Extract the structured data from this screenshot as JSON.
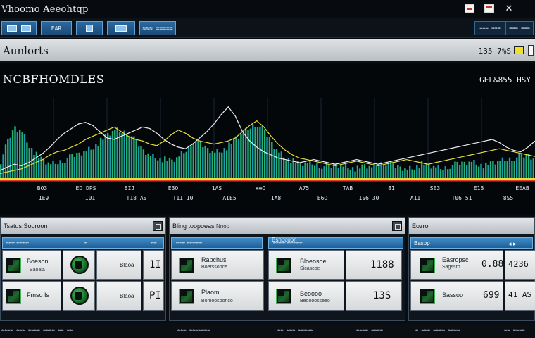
{
  "window": {
    "title": "Vhoomo Aeeohtqp",
    "controls": [
      "minimize-icon",
      "maximize-icon",
      "close-icon"
    ]
  },
  "toolbar": {
    "buttons": [
      {
        "icon": "window-icon",
        "label": ""
      },
      {
        "icon": "",
        "label": "EAR"
      },
      {
        "icon": "download-icon",
        "label": ""
      },
      {
        "icon": "list-icon",
        "label": ""
      },
      {
        "icon": "",
        "label": "≈≈≈ ====="
      }
    ],
    "right_buttons": [
      "=== ≈≈≈",
      "≈≈≈ ≈≈≈"
    ]
  },
  "section": {
    "title": "Aunlorts",
    "value": "135 7%S",
    "accent": "#f2e12a"
  },
  "chart_panel": {
    "title": "NCBFHOMDLES",
    "readout": "GEL&855 HSY"
  },
  "chart_data": {
    "type": "area",
    "title": "NCBFHOMDLES",
    "xlabel": "",
    "ylabel": "",
    "ylim": [
      0,
      100
    ],
    "grid": true,
    "x": [
      0,
      1,
      2,
      3,
      4,
      5,
      6,
      7,
      8,
      9,
      10,
      11,
      12,
      13,
      14,
      15,
      16,
      17,
      18,
      19,
      20,
      21,
      22,
      23,
      24,
      25,
      26,
      27,
      28,
      29,
      30,
      31,
      32,
      33,
      34,
      35,
      36,
      37,
      38,
      39,
      40,
      41,
      42,
      43,
      44,
      45,
      46,
      47,
      48,
      49,
      50,
      51,
      52,
      53,
      54,
      55,
      56,
      57,
      58,
      59,
      60,
      61,
      62,
      63,
      64,
      65,
      66,
      67,
      68,
      69,
      70,
      71,
      72,
      73,
      74,
      75
    ],
    "series": [
      {
        "values": [
          22,
          48,
          66,
          60,
          42,
          30,
          22,
          18,
          20,
          24,
          28,
          32,
          36,
          40,
          48,
          56,
          62,
          60,
          58,
          46,
          36,
          30,
          26,
          24,
          22,
          28,
          36,
          48,
          44,
          38,
          34,
          36,
          42,
          52,
          58,
          66,
          70,
          60,
          46,
          34,
          26,
          22,
          18,
          20,
          18,
          16,
          14,
          18,
          16,
          14,
          12,
          16,
          14,
          18,
          20,
          16,
          14,
          12,
          14,
          18,
          16,
          14,
          12,
          16,
          18,
          20,
          22,
          18,
          16,
          20,
          22,
          24,
          26,
          28,
          30,
          24
        ]
      },
      {
        "values": [
          10,
          14,
          18,
          16,
          20,
          26,
          32,
          40,
          50,
          58,
          64,
          70,
          72,
          68,
          60,
          52,
          50,
          54,
          58,
          62,
          66,
          64,
          58,
          50,
          44,
          40,
          38,
          44,
          52,
          60,
          70,
          82,
          92,
          80,
          60,
          48,
          40,
          34,
          30,
          26,
          24,
          22,
          20,
          22,
          24,
          22,
          20,
          18,
          20,
          22,
          24,
          22,
          20,
          18,
          20,
          22,
          24,
          26,
          28,
          30,
          32,
          34,
          36,
          38,
          40,
          42,
          44,
          46,
          48,
          50,
          46,
          40,
          36,
          34,
          40,
          48
        ]
      },
      {
        "values": [
          6,
          8,
          10,
          12,
          16,
          20,
          24,
          30,
          34,
          36,
          40,
          44,
          50,
          54,
          58,
          62,
          66,
          60,
          54,
          50,
          48,
          44,
          42,
          48,
          56,
          62,
          58,
          52,
          48,
          46,
          44,
          46,
          48,
          52,
          60,
          68,
          74,
          66,
          54,
          44,
          36,
          30,
          26,
          24,
          22,
          20,
          18,
          16,
          18,
          20,
          22,
          20,
          18,
          16,
          18,
          20,
          22,
          24,
          22,
          20,
          18,
          20,
          22,
          24,
          26,
          28,
          30,
          32,
          34,
          36,
          38,
          36,
          34,
          32,
          30,
          28
        ]
      }
    ],
    "colors": [
      "#1fb6d6",
      "#e8e03a",
      "#e03a2a"
    ]
  },
  "ticks": {
    "row1": [
      "BO3",
      "ED DPS",
      "BIJ",
      "E3O",
      "1AS",
      "≡≡O",
      "A75",
      "TAB",
      "81",
      "SE3",
      "E1B",
      "EEAB"
    ],
    "row2": [
      "1E9",
      "101",
      "T18 AS",
      "T11 10",
      "AIE5",
      "1A8",
      "E6O",
      "1S6 30",
      "A11",
      "T06 51",
      "8S5"
    ]
  },
  "panels": [
    {
      "title": "Tsatus Sooroon",
      "sub": "",
      "subhead": [
        "≈≈≈ ≈≈≈≈",
        "≈",
        "≈≈"
      ],
      "rows": [
        {
          "title": "Boeson",
          "sub": "Saoala",
          "label": "Blaoa",
          "value": "1I"
        },
        {
          "title": "Fmso Is",
          "sub": "",
          "label": "Blaoa",
          "value": "PI"
        }
      ]
    },
    {
      "title": "Bling toopoeas",
      "sub": "Nnoo",
      "subhead": [
        "≈≈≈ ≈≈≈≈≈"
      ],
      "rows": [
        {
          "title": "Rapchus",
          "sub": "Boerssooce",
          "value": ""
        },
        {
          "title": "Plaom",
          "sub": "Bomoosoonco",
          "value": ""
        }
      ]
    },
    {
      "title": "Bsnpcoon",
      "sub": "",
      "subhead": [
        "≈≈≈≈ ≈≈≈≈≈"
      ],
      "rows": [
        {
          "title": "Bloeosoe",
          "sub": "Sicascoe",
          "value": "1188"
        },
        {
          "title": "Beoooo",
          "sub": "Beoooosseeo",
          "value": "13S"
        }
      ]
    },
    {
      "title": "Eozro",
      "sub": "",
      "subhead": [
        "Basop"
      ],
      "rows": [
        {
          "title": "Easropsc",
          "sub": "Sagssrp",
          "value": "0.88",
          "extra": "4236"
        },
        {
          "title": "Sassoo",
          "sub": "",
          "value": "699",
          "extra": "41 AS"
        }
      ]
    }
  ],
  "status": {
    "left": "≈≈≈≈ ≈≈≈ ≈≈≈≈ ≈≈≈≈ ≈≈ ≈≈",
    "mid1": "≈≈≈ ≈≈≈≈≈≈≈",
    "mid2": "≈≈ ≈≈≈ ≈≈≈≈≈",
    "mid3": "≈≈≈≈ ≈≈≈≈",
    "right1": "≈ ≈≈≈ ≈≈≈≈ ≈≈≈≈",
    "right2": "≈≈ ≈≈≈≈"
  }
}
